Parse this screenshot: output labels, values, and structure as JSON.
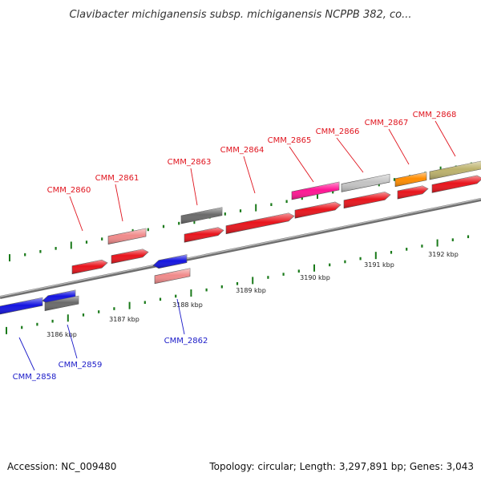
{
  "title": "Clavibacter michiganensis subsp. michiganensis NCPPB 382, co...",
  "footer": {
    "accession": "Accession: NC_009480",
    "topology": "Topology: circular; Length: 3,297,891 bp; Genes: 3,043"
  },
  "colors": {
    "forward_label": "#e0141e",
    "reverse_label": "#1a1ac8",
    "axis": "#888888",
    "tick": "#1a7a1a"
  },
  "kbp_labels": [
    "3186 kbp",
    "3187 kbp",
    "3188 kbp",
    "3189 kbp",
    "3190 kbp",
    "3191 kbp",
    "3192 kbp"
  ],
  "gene_labels": [
    {
      "text": "CMM_2858",
      "strand": "reverse"
    },
    {
      "text": "CMM_2859",
      "strand": "reverse"
    },
    {
      "text": "CMM_2860",
      "strand": "forward"
    },
    {
      "text": "CMM_2861",
      "strand": "forward"
    },
    {
      "text": "CMM_2862",
      "strand": "reverse"
    },
    {
      "text": "CMM_2863",
      "strand": "forward"
    },
    {
      "text": "CMM_2864",
      "strand": "forward"
    },
    {
      "text": "CMM_2865",
      "strand": "forward"
    },
    {
      "text": "CMM_2866",
      "strand": "forward"
    },
    {
      "text": "CMM_2867",
      "strand": "forward"
    },
    {
      "text": "CMM_2868",
      "strand": "forward"
    }
  ]
}
